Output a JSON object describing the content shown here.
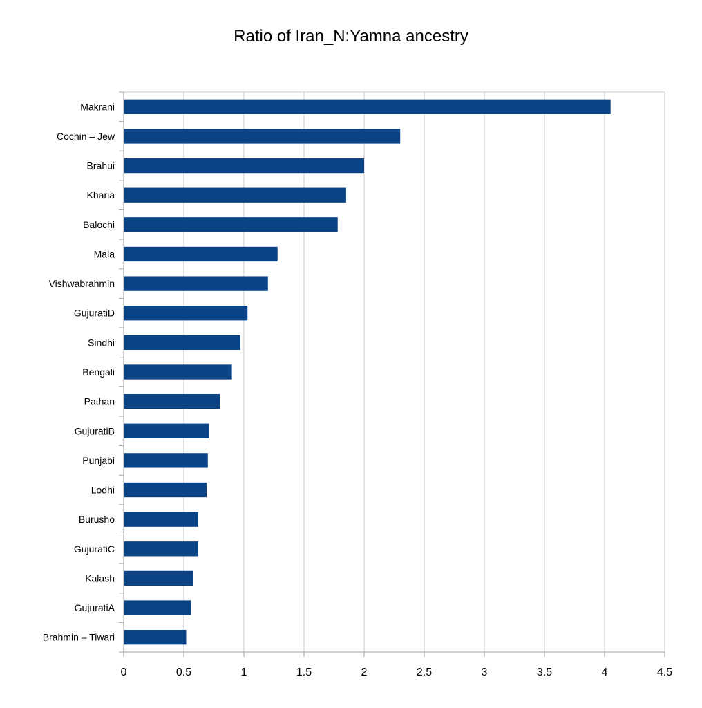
{
  "chart_data": {
    "type": "bar",
    "orientation": "horizontal",
    "title": "Ratio of Iran_N:Yamna ancestry",
    "xlabel": "",
    "ylabel": "",
    "categories": [
      "Makrani",
      "Cochin – Jew",
      "Brahui",
      "Kharia",
      "Balochi",
      "Mala",
      "Vishwabrahmin",
      "GujuratiD",
      "Sindhi",
      "Bengali",
      "Pathan",
      "GujuratiB",
      "Punjabi",
      "Lodhi",
      "Burusho",
      "GujuratiC",
      "Kalash",
      "GujuratiA",
      "Brahmin – Tiwari"
    ],
    "values": [
      4.05,
      2.3,
      2.0,
      1.85,
      1.78,
      1.28,
      1.2,
      1.03,
      0.97,
      0.9,
      0.8,
      0.71,
      0.7,
      0.69,
      0.62,
      0.62,
      0.58,
      0.56,
      0.52
    ],
    "xlim": [
      0,
      4.5
    ],
    "ticks": [
      0,
      0.5,
      1,
      1.5,
      2,
      2.5,
      3,
      3.5,
      4,
      4.5
    ],
    "tick_labels": [
      "0",
      "0.5",
      "1",
      "1.5",
      "2",
      "2.5",
      "3",
      "3.5",
      "4",
      "4.5"
    ],
    "grid": true,
    "legend": "none",
    "bar_color": "#0b4387",
    "grid_color": "#c8c8c8",
    "axis_color": "#a0a0a0"
  }
}
